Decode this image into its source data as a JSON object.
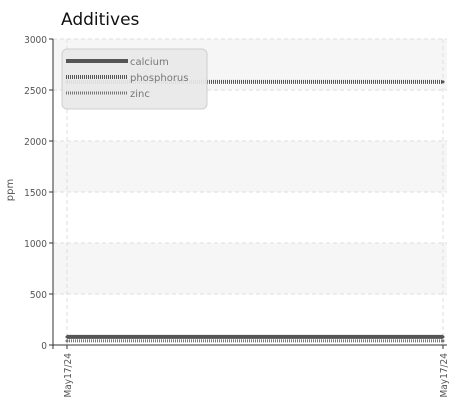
{
  "chart_data": {
    "type": "line",
    "title": "Additives",
    "ylabel": "ppm",
    "xlabel": "",
    "ylim": [
      0,
      3000
    ],
    "yticks": [
      0,
      500,
      1000,
      1500,
      2000,
      2500,
      3000
    ],
    "x": [
      "May17/24",
      "May17/24"
    ],
    "grid": true,
    "legend_position": "top-left",
    "series": [
      {
        "name": "calcium",
        "values": [
          80,
          80
        ],
        "color": "#555555",
        "style": "solid"
      },
      {
        "name": "phosphorus",
        "values": [
          2580,
          2580
        ],
        "color": "#555555",
        "style": "dotted"
      },
      {
        "name": "zinc",
        "values": [
          40,
          40
        ],
        "color": "#777777",
        "style": "dotted"
      }
    ]
  }
}
